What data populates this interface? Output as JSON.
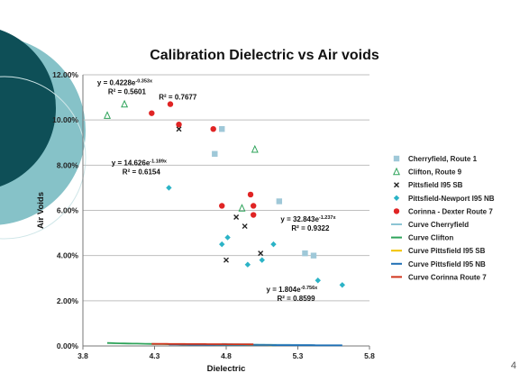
{
  "slide": {
    "page_number": "4",
    "accent_dark": "#0d4f57",
    "accent_light": "#7bbcc2"
  },
  "chart_data": {
    "type": "scatter",
    "title": "Calibration Dielectric vs Air voids",
    "xlabel": "Dielectric",
    "ylabel": "Air Voids",
    "xlim": [
      3.8,
      5.8
    ],
    "ylim": [
      0,
      12
    ],
    "x_ticks": [
      "3.8",
      "4.3",
      "4.8",
      "5.3",
      "5.8"
    ],
    "y_ticks": [
      "0.00%",
      "2.00%",
      "4.00%",
      "6.00%",
      "8.00%",
      "10.00%",
      "12.00%"
    ],
    "grid": "horizontal",
    "legend_position": "right",
    "series": [
      {
        "name": "Cherryfield, Route 1",
        "marker": "square",
        "color": "#9fc8d8",
        "x": [
          4.77,
          4.72,
          5.17,
          5.35,
          5.41
        ],
        "y": [
          9.6,
          8.5,
          6.4,
          4.1,
          4.0
        ]
      },
      {
        "name": "Clifton, Route 9",
        "marker": "triangle",
        "color": "#2ea35a",
        "x": [
          3.97,
          4.09,
          5.0,
          4.91
        ],
        "y": [
          10.2,
          10.7,
          8.7,
          6.1
        ]
      },
      {
        "name": "Pittsfield I95 SB",
        "marker": "x",
        "color": "#222222",
        "x": [
          4.47,
          4.87,
          4.93,
          4.8,
          5.04
        ],
        "y": [
          9.6,
          5.7,
          5.3,
          3.8,
          4.1
        ]
      },
      {
        "name": "Pittsfield-Newport I95 NB",
        "marker": "diamond",
        "color": "#2bb3c6",
        "x": [
          4.4,
          4.77,
          4.81,
          4.95,
          5.05,
          5.13,
          5.44,
          5.61
        ],
        "y": [
          7.0,
          4.5,
          4.8,
          3.6,
          3.8,
          4.5,
          2.9,
          2.7
        ]
      },
      {
        "name": "Corinna - Dexter Route 7",
        "marker": "circle",
        "color": "#e02424",
        "x": [
          4.28,
          4.41,
          4.47,
          4.71,
          4.77,
          4.97,
          4.99,
          4.99
        ],
        "y": [
          10.3,
          10.7,
          9.8,
          9.6,
          6.2,
          6.7,
          6.2,
          5.8
        ]
      },
      {
        "name": "Curve Cherryfield",
        "kind": "line",
        "color": "#8cc4d4",
        "x": [
          4.77,
          5.42
        ],
        "a": 32.843,
        "b": -1.237
      },
      {
        "name": "Curve Clifton",
        "kind": "line",
        "color": "#2ea35a",
        "x": [
          3.97,
          5.15
        ],
        "a": 14.626,
        "b": -1.189
      },
      {
        "name": "Curve Pittsfield I95 SB",
        "kind": "line",
        "color": "#f2c200",
        "x": [
          4.47,
          5.12
        ],
        "a": 14.626,
        "b": -1.189
      },
      {
        "name": "Curve Pittsfield I95 NB",
        "kind": "line",
        "color": "#1f6fb5",
        "x": [
          4.4,
          5.61
        ],
        "a": 1.804,
        "b": -0.756
      },
      {
        "name": "Curve Corinna Route 7",
        "kind": "line",
        "color": "#d0341c",
        "x": [
          4.28,
          4.99
        ],
        "a": 0.4228,
        "b": -0.353
      }
    ],
    "annotations": [
      {
        "line1": "y = 0.4228e",
        "exp": "-0.353x",
        "line2": "R² = 0.5601",
        "x": 3.9,
        "y": 11.55
      },
      {
        "line1": "R² = 0.7677",
        "exp": "",
        "line2": "",
        "x": 4.33,
        "y": 10.9
      },
      {
        "line1": "y = 14.626e",
        "exp": "-1.189x",
        "line2": "R² = 0.6154",
        "x": 4.0,
        "y": 8.0
      },
      {
        "line1": "y = 32.843e",
        "exp": "-1.237x",
        "line2": "R² = 0.9322",
        "x": 5.18,
        "y": 5.5
      },
      {
        "line1": "y = 1.804e",
        "exp": "-0.756x",
        "line2": "R² = 0.8599",
        "x": 5.08,
        "y": 2.4
      }
    ]
  }
}
